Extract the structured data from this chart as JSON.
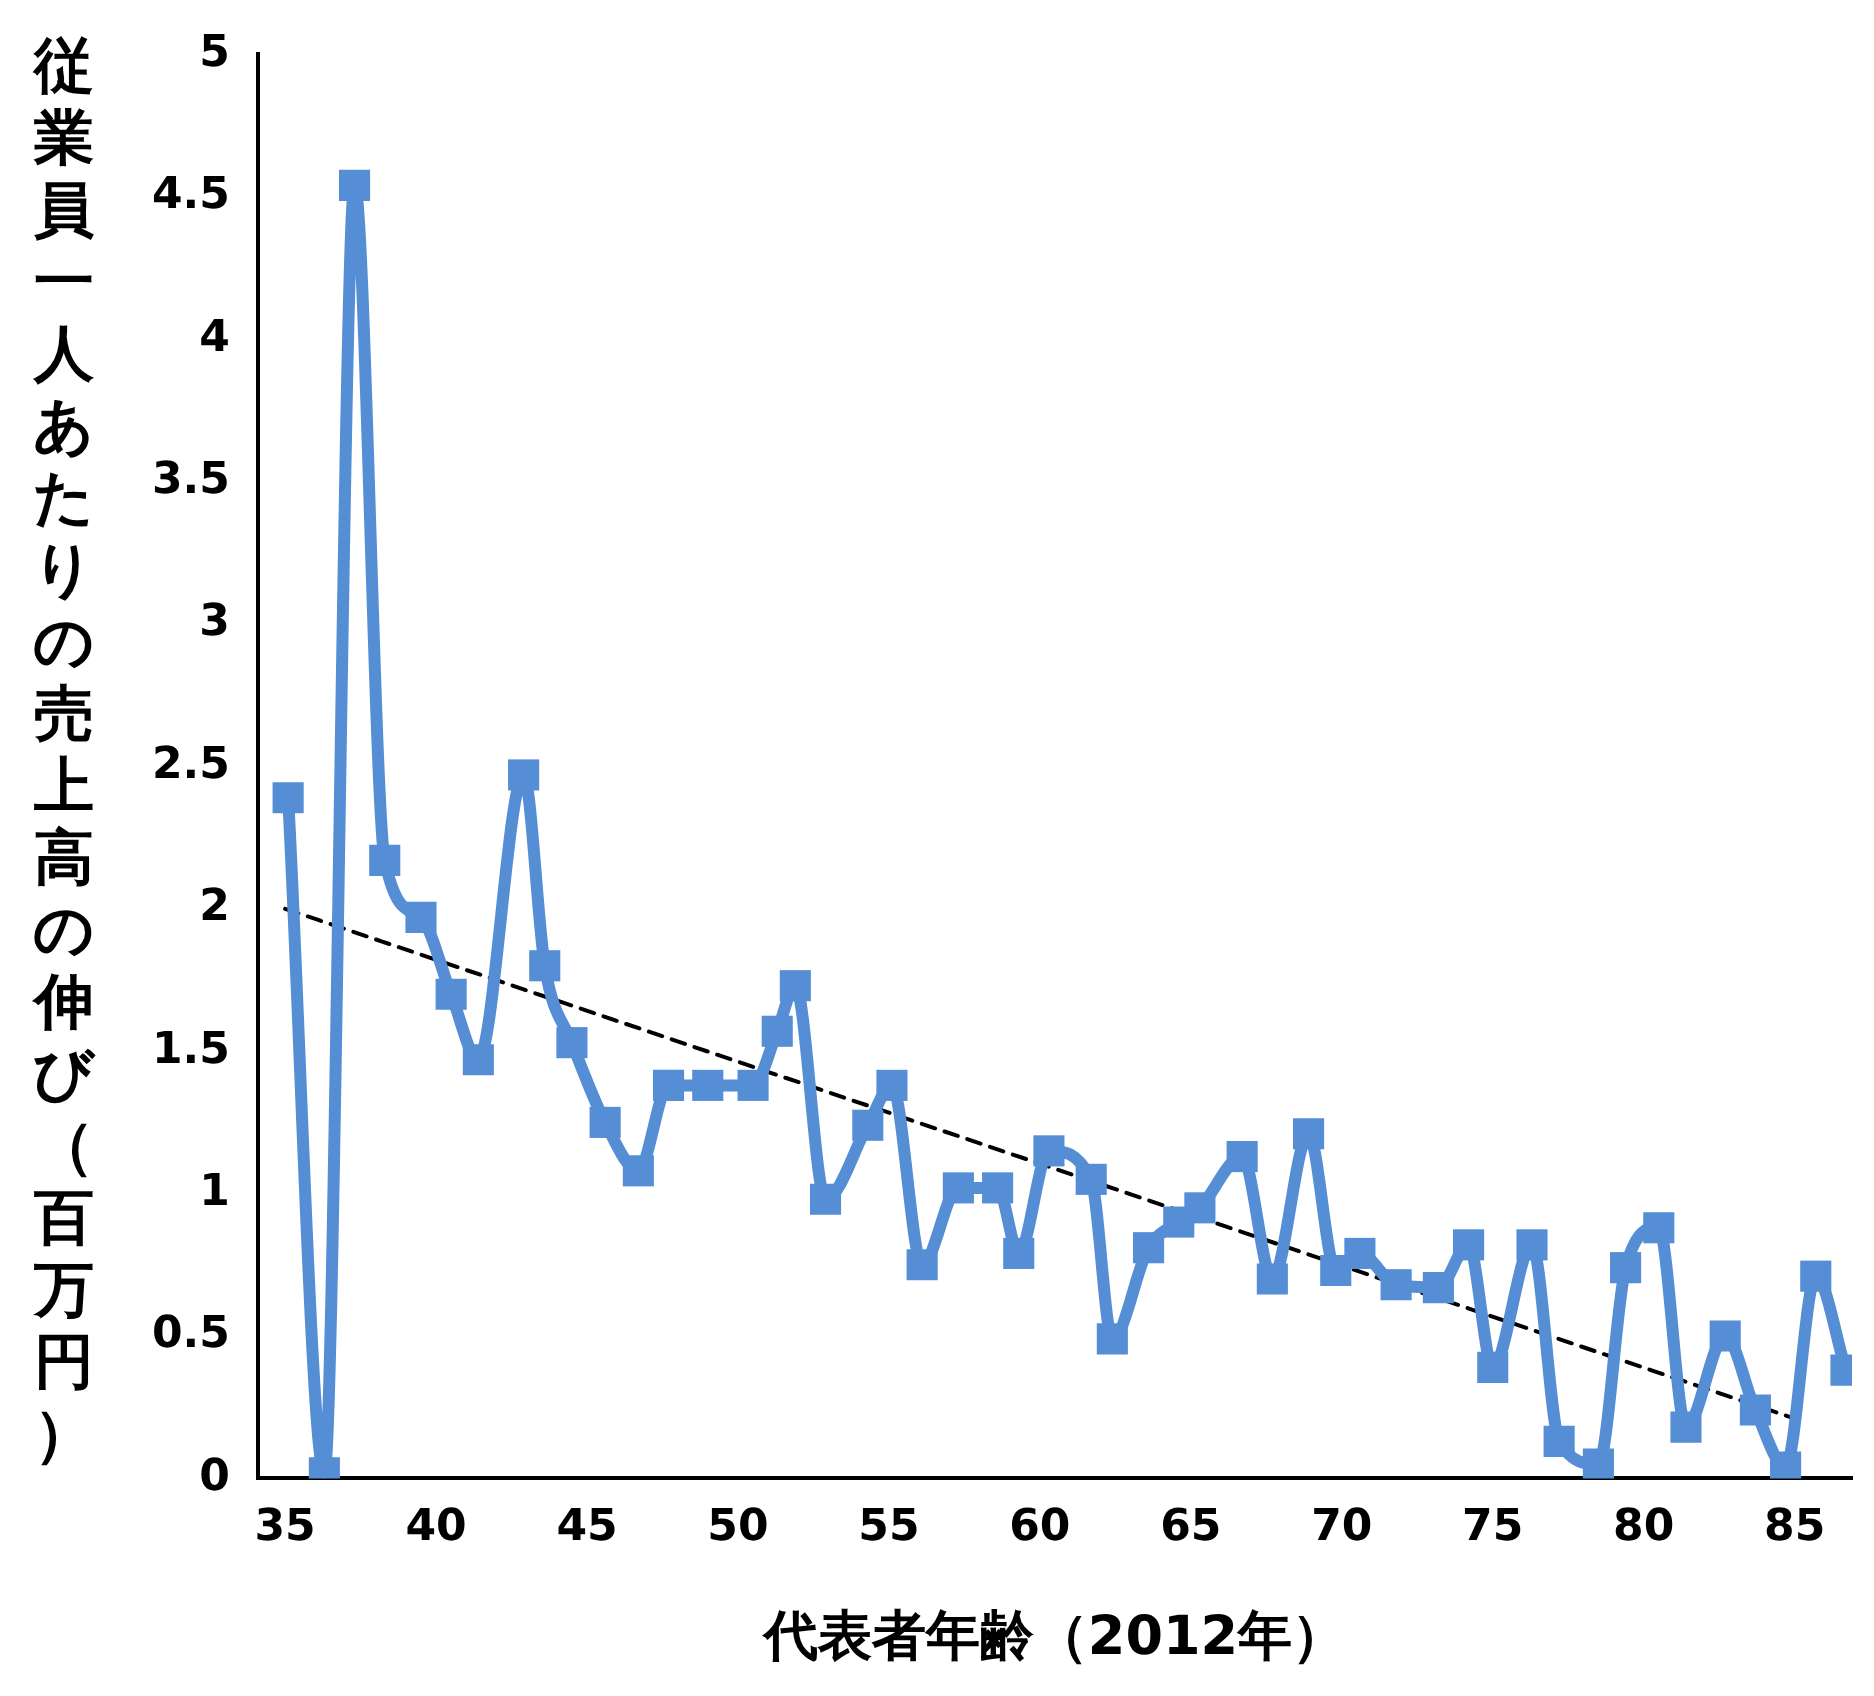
{
  "chart_data": {
    "type": "line",
    "xlabel": "代表者年齢（2012年）",
    "ylabel": "従業員一人あたりの売上高の伸び（百万円）",
    "xlim": [
      34.1,
      86.9
    ],
    "xticks": [
      35,
      40,
      45,
      50,
      55,
      60,
      65,
      70,
      75,
      80,
      85
    ],
    "ylim": [
      0,
      5
    ],
    "yticks": [
      0,
      0.5,
      1,
      1.5,
      2,
      2.5,
      3,
      3.5,
      4,
      4.5,
      5
    ],
    "grid": false,
    "legend": false,
    "series": [
      {
        "color": "#558ed5",
        "marker": "square",
        "line_style": "solid",
        "x": [
          35.1,
          36.3,
          37.3,
          38.3,
          39.5,
          40.5,
          41.4,
          42.9,
          43.6,
          44.5,
          45.6,
          46.7,
          47.7,
          49.0,
          50.5,
          51.3,
          51.9,
          52.9,
          54.3,
          55.1,
          56.1,
          57.3,
          58.6,
          59.3,
          60.3,
          61.7,
          62.4,
          63.6,
          64.6,
          65.3,
          66.7,
          67.7,
          68.9,
          69.8,
          70.6,
          71.8,
          73.2,
          74.2,
          75.0,
          76.3,
          77.2,
          78.5,
          79.4,
          80.5,
          81.4,
          82.7,
          83.7,
          84.7,
          85.7,
          86.7
        ],
        "values": [
          2.39,
          0.02,
          4.54,
          2.17,
          1.97,
          1.7,
          1.47,
          2.47,
          1.8,
          1.53,
          1.25,
          1.08,
          1.38,
          1.38,
          1.38,
          1.57,
          1.73,
          0.98,
          1.24,
          1.38,
          0.75,
          1.02,
          1.02,
          0.79,
          1.15,
          1.05,
          0.49,
          0.81,
          0.9,
          0.95,
          1.13,
          0.7,
          1.21,
          0.73,
          0.79,
          0.68,
          0.67,
          0.82,
          0.39,
          0.82,
          0.13,
          0.05,
          0.74,
          0.88,
          0.18,
          0.5,
          0.24,
          0.04,
          0.71,
          0.38
        ]
      },
      {
        "color": "#000000",
        "marker": "none",
        "line_style": "dashed",
        "x": [
          35,
          85
        ],
        "values": [
          2.0,
          0.21
        ]
      }
    ]
  }
}
